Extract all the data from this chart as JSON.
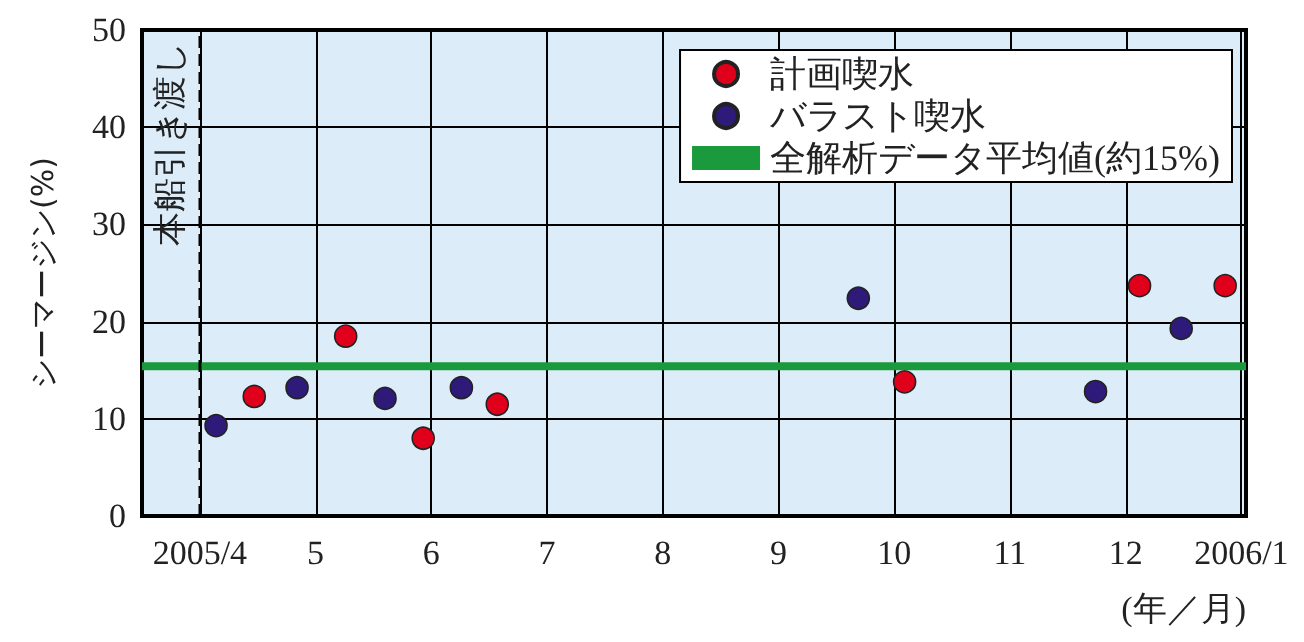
{
  "chart_data": {
    "type": "scatter",
    "ylabel": "シーマージン(%)",
    "xlabel": "(年／月)",
    "xlim": [
      3.5,
      13.04
    ],
    "xticks": [
      {
        "value": 4,
        "label": "2005/4"
      },
      5,
      6,
      7,
      8,
      9,
      10,
      11,
      12,
      {
        "value": 13,
        "label": "2006/1"
      }
    ],
    "ylim": [
      0,
      50
    ],
    "yticks": [
      0,
      10,
      20,
      30,
      40,
      50
    ],
    "grid": true,
    "legend": "top right",
    "marker": "circle",
    "series": [
      {
        "name": "計画喫水",
        "color": "#e0001b",
        "x": [
          4.47,
          5.26,
          5.93,
          6.57,
          10.09,
          12.12,
          12.86
        ],
        "values": [
          12.3,
          18.5,
          8.0,
          11.5,
          13.8,
          23.7,
          23.7
        ]
      },
      {
        "name": "バラスト喫水",
        "color": "#2e1a78",
        "x": [
          4.14,
          4.84,
          5.6,
          6.26,
          9.69,
          11.74,
          12.48
        ],
        "values": [
          9.3,
          13.2,
          12.1,
          13.2,
          22.4,
          12.8,
          19.3
        ]
      },
      {
        "name": "全解析データ平均値(約15%)",
        "type": "line",
        "color": "#1a9a3c",
        "marker": "none",
        "x": [
          3.5,
          13.04
        ],
        "values": [
          15.4,
          15.4
        ]
      }
    ],
    "ref_lines": [
      {
        "axis": "x",
        "value": 4,
        "label": "本船引き渡し",
        "color": "#000000",
        "line_style": "dashed"
      }
    ]
  }
}
